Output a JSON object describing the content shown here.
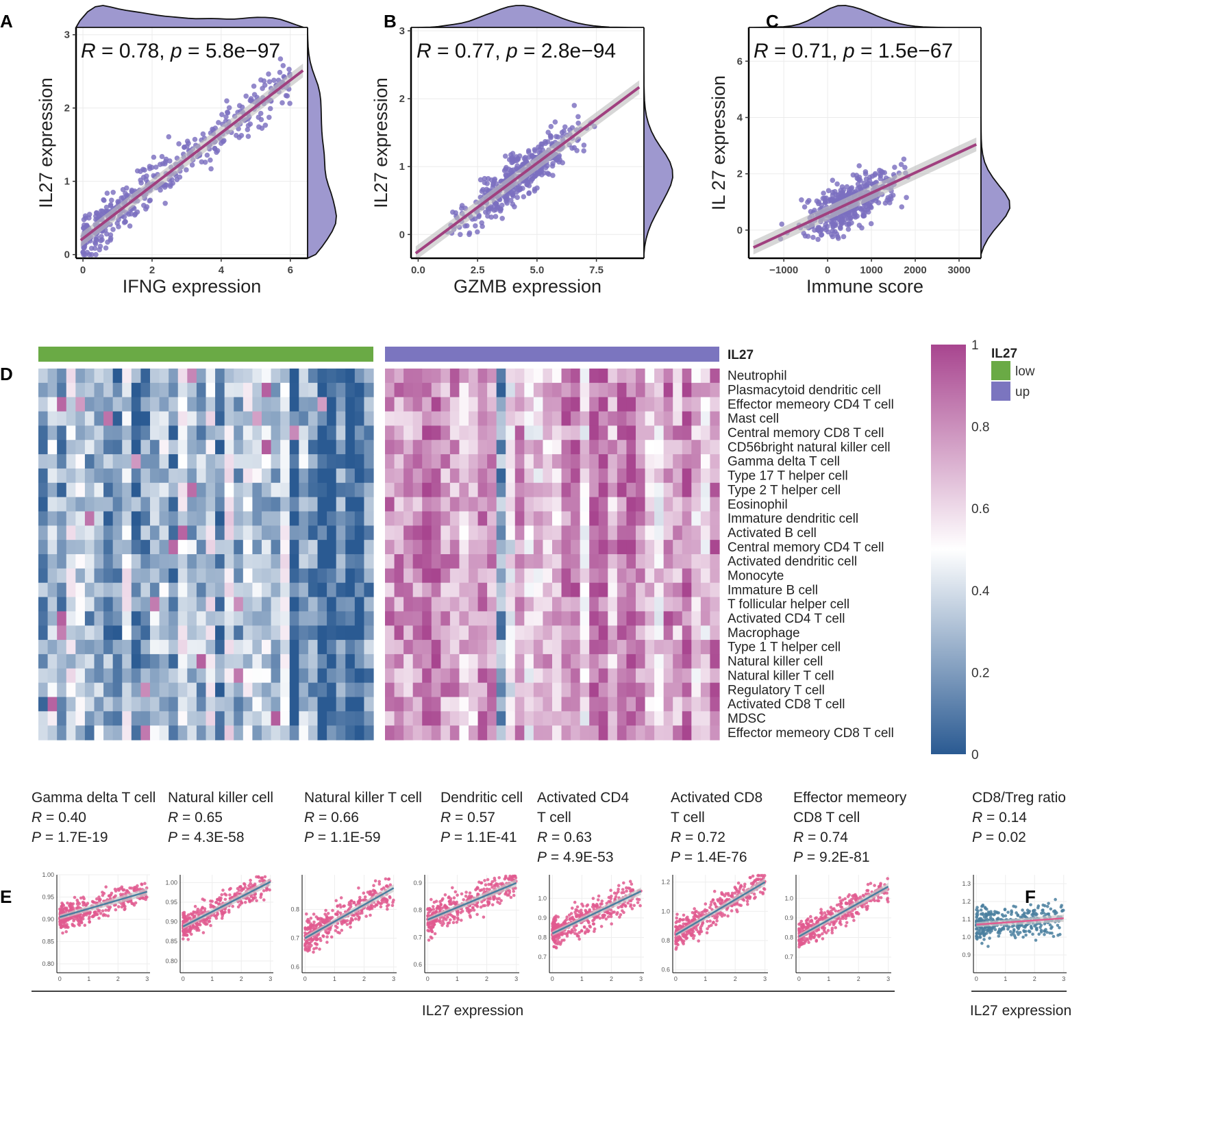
{
  "figure": {
    "panel_labels": [
      "A",
      "B",
      "C",
      "D",
      "E",
      "F"
    ]
  },
  "chart_data": [
    {
      "panel": "A",
      "type": "scatter",
      "stat_R": "0.78",
      "stat_p": "5.8e−97",
      "xlabel": "IFNG expression",
      "ylabel": "IL27 expression",
      "xlim": [
        -0.2,
        6.5
      ],
      "ylim": [
        -0.05,
        3.1
      ],
      "xticks": [
        0,
        2,
        4,
        6
      ],
      "yticks": [
        0,
        1,
        2,
        3
      ],
      "fit": {
        "intercept": 0.22,
        "slope": 0.36
      },
      "n_points": 430,
      "seed": 11,
      "point_color": "#7b6fc0",
      "fit_color": "#a0407f",
      "density_color": "#9e98cf"
    },
    {
      "panel": "B",
      "type": "scatter",
      "stat_R": "0.77",
      "stat_p": "2.8e−94",
      "xlabel": "GZMB expression",
      "ylabel": "IL27 expression",
      "xlim": [
        -0.3,
        9.5
      ],
      "ylim": [
        -0.35,
        3.05
      ],
      "xticks": [
        0.0,
        2.5,
        5.0,
        7.5
      ],
      "xtick_labels": [
        "0.0",
        "2.5",
        "5.0",
        "7.5"
      ],
      "yticks": [
        0,
        1,
        2,
        3
      ],
      "fit": {
        "intercept": -0.25,
        "slope": 0.26
      },
      "n_points": 430,
      "seed": 23,
      "point_color": "#7b6fc0",
      "fit_color": "#a0407f",
      "density_color": "#9e98cf"
    },
    {
      "panel": "C",
      "type": "scatter",
      "stat_R": "0.71",
      "stat_p": "1.5e−67",
      "xlabel": "Immune score",
      "ylabel": "IL 27 expression",
      "xlim": [
        -1800,
        3500
      ],
      "ylim": [
        -1.0,
        7.2
      ],
      "xticks": [
        -1000,
        0,
        1000,
        2000,
        3000
      ],
      "xtick_labels": [
        "−1000",
        "0",
        "1000",
        "2000",
        "3000"
      ],
      "yticks": [
        0,
        2,
        4,
        6
      ],
      "fit": {
        "intercept": 0.6,
        "slope": 0.00072
      },
      "n_points": 430,
      "seed": 37,
      "point_color": "#7b6fc0",
      "fit_color": "#a0407f",
      "density_color": "#9e98cf"
    },
    {
      "panel": "D",
      "type": "heatmap",
      "annotation_title": "IL27",
      "groups": [
        {
          "name": "low",
          "color": "#6aaa45",
          "columns": 36
        },
        {
          "name": "up",
          "color": "#7b75bf",
          "columns": 36
        }
      ],
      "rows": [
        "Neutrophil",
        "Plasmacytoid dendritic cell",
        "Effector memeory CD4 T cell",
        "Mast cell",
        "Central memory CD8 T cell",
        "CD56bright natural killer cell",
        "Gamma delta T cell",
        "Type 17 T helper cell",
        "Type 2 T helper cell",
        "Eosinophil",
        "Immature dendritic cell",
        "Activated B cell",
        "Central memory CD4 T cell",
        "Activated dendritic cell",
        "Monocyte",
        "Immature B cell",
        "T follicular helper cell",
        "Activated CD4 T cell",
        "Macrophage",
        "Type 1 T helper cell",
        "Natural killer cell",
        "Natural killer T cell",
        "Regulatory T cell",
        "Activated CD8 T cell",
        "MDSC",
        "Effector memeory CD8 T cell"
      ],
      "colorbar": {
        "range": [
          0,
          1
        ],
        "ticks": [
          "0",
          "0.2",
          "0.4",
          "0.6",
          "0.8",
          "1"
        ],
        "low_color": "#2a5a92",
        "mid_color": "#ffffff",
        "high_color": "#a8458f"
      },
      "legend_title": "IL27",
      "legend_items": [
        {
          "label": "low",
          "color": "#6aaa45"
        },
        {
          "label": "up",
          "color": "#7b75bf"
        }
      ],
      "seed": 5
    },
    {
      "panel": "E",
      "type": "scatter",
      "shared_xlabel": "IL27 expression",
      "xlim": [
        -0.1,
        3.1
      ],
      "xticks": [
        0,
        1,
        2,
        3
      ],
      "point_color": "#e05a8f",
      "fit_color": "#4a7f9f",
      "subplots": [
        {
          "title_lines": [
            "Gamma delta T cell"
          ],
          "R": "0.40",
          "P": "1.7E-19",
          "ylim": [
            0.78,
            1.0
          ],
          "yticks": [
            0.8,
            0.85,
            0.9,
            0.95,
            1.0
          ],
          "ytick_labels": [
            "0.80",
            "0.85",
            "0.90",
            "0.95",
            "1.00"
          ],
          "fit": {
            "intercept": 0.905,
            "slope": 0.019
          },
          "noise": 0.028,
          "seed": 101
        },
        {
          "title_lines": [
            "Natural killer cell"
          ],
          "R": "0.65",
          "P": "4.3E-58",
          "ylim": [
            0.77,
            1.02
          ],
          "yticks": [
            0.8,
            0.85,
            0.9,
            0.95,
            1.0
          ],
          "ytick_labels": [
            "0.80",
            "0.85",
            "0.90",
            "0.95",
            "1.00"
          ],
          "fit": {
            "intercept": 0.888,
            "slope": 0.038
          },
          "noise": 0.03,
          "seed": 102
        },
        {
          "title_lines": [
            "Natural killer T cell"
          ],
          "R": "0.66",
          "P": "1.1E-59",
          "ylim": [
            0.58,
            0.92
          ],
          "yticks": [
            0.6,
            0.7,
            0.8
          ],
          "ytick_labels": [
            "0.6",
            "0.7",
            "0.8"
          ],
          "fit": {
            "intercept": 0.7,
            "slope": 0.058
          },
          "noise": 0.05,
          "seed": 103
        },
        {
          "title_lines": [
            "Dendritic cell"
          ],
          "R": "0.57",
          "P": "1.1E-41",
          "ylim": [
            0.57,
            0.93
          ],
          "yticks": [
            0.6,
            0.7,
            0.8,
            0.9
          ],
          "ytick_labels": [
            "0.6",
            "0.7",
            "0.8",
            "0.9"
          ],
          "fit": {
            "intercept": 0.765,
            "slope": 0.045
          },
          "noise": 0.055,
          "seed": 104
        },
        {
          "title_lines": [
            "Activated CD4",
            "T cell"
          ],
          "R": "0.63",
          "P": "4.9E-53",
          "ylim": [
            0.62,
            1.12
          ],
          "yticks": [
            0.7,
            0.8,
            0.9,
            1.0
          ],
          "ytick_labels": [
            "0.7",
            "0.8",
            "0.9",
            "1.0"
          ],
          "fit": {
            "intercept": 0.82,
            "slope": 0.072
          },
          "noise": 0.07,
          "seed": 105
        },
        {
          "title_lines": [
            "Activated CD8",
            "T cell"
          ],
          "R": "0.72",
          "P": "1.4E-76",
          "ylim": [
            0.58,
            1.25
          ],
          "yticks": [
            0.6,
            0.8,
            1.0,
            1.2
          ],
          "ytick_labels": [
            "0.6",
            "0.8",
            "1.0",
            "1.2"
          ],
          "fit": {
            "intercept": 0.84,
            "slope": 0.12
          },
          "noise": 0.09,
          "seed": 106
        },
        {
          "title_lines": [
            "Effector memeory",
            "CD8 T cell"
          ],
          "R": "0.74",
          "P": "9.2E-81",
          "ylim": [
            0.62,
            1.12
          ],
          "yticks": [
            0.7,
            0.8,
            0.9,
            1.0
          ],
          "ytick_labels": [
            "0.7",
            "0.8",
            "0.9",
            "1.0"
          ],
          "fit": {
            "intercept": 0.805,
            "slope": 0.085
          },
          "noise": 0.065,
          "seed": 107
        }
      ]
    },
    {
      "panel": "F",
      "type": "scatter",
      "title_lines": [
        "CD8/Treg ratio"
      ],
      "R": "0.14",
      "P": "0.02",
      "xlabel": "IL27 expression",
      "xlim": [
        -0.1,
        3.1
      ],
      "xticks": [
        0,
        1,
        2,
        3
      ],
      "ylim": [
        0.8,
        1.35
      ],
      "yticks": [
        0.9,
        1.0,
        1.1,
        1.2,
        1.3
      ],
      "ytick_labels": [
        "0.9",
        "1.0",
        "1.1",
        "1.2",
        "1.3"
      ],
      "fit": {
        "intercept": 1.07,
        "slope": 0.012
      },
      "noise": 0.08,
      "seed": 108,
      "point_color": "#4a7f9f",
      "fit_color": "#e05a8f"
    }
  ]
}
